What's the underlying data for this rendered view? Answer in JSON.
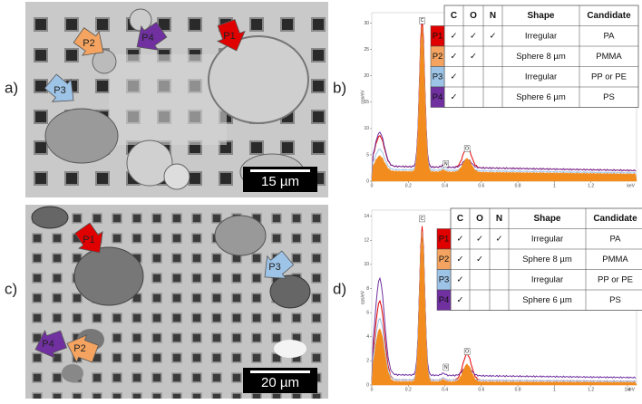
{
  "panel_a": {
    "label": "a)",
    "scale_bar": "15 µm",
    "markers": [
      "P1",
      "P2",
      "P3",
      "P4"
    ]
  },
  "panel_c": {
    "label": "c)",
    "scale_bar": "20 µm",
    "markers": [
      "P1",
      "P2",
      "P3",
      "P4"
    ]
  },
  "panel_b": {
    "label": "b)",
    "y_axis": "cps/eV",
    "x_axis": "keV",
    "xticks": [
      0,
      0.2,
      0.4,
      0.6,
      0.8,
      1,
      1.2
    ],
    "xlim": [
      0,
      1.45
    ],
    "yticks": [
      0,
      5,
      10,
      15,
      20,
      25,
      30
    ],
    "ylim": [
      0,
      32
    ],
    "peaks": [
      "C",
      "N",
      "O"
    ],
    "table": {
      "header": [
        "C",
        "O",
        "N",
        "Shape",
        "Candidate"
      ],
      "rows": [
        [
          "P1",
          "✓",
          "✓",
          "✓",
          "Irregular",
          "PA"
        ],
        [
          "P2",
          "✓",
          "✓",
          null,
          "Sphere 8 µm",
          "PMMA"
        ],
        [
          "P3",
          "✓",
          null,
          null,
          "Irregular",
          "PP or PE"
        ],
        [
          "P4",
          "✓",
          null,
          null,
          "Sphere 6 µm",
          "PS"
        ]
      ]
    }
  },
  "panel_d": {
    "label": "d)",
    "y_axis": "cps/eV",
    "x_axis": "keV",
    "xticks": [
      0,
      0.2,
      0.4,
      0.6,
      0.8,
      1,
      1.2,
      1.4
    ],
    "xlim": [
      0,
      1.45
    ],
    "yticks": [
      0,
      2,
      4,
      6,
      8,
      10,
      12,
      14
    ],
    "ylim": [
      0,
      14.5
    ],
    "peaks": [
      "C",
      "N",
      "O"
    ],
    "table": {
      "header": [
        "C",
        "O",
        "N",
        "Shape",
        "Candidate"
      ],
      "rows": [
        [
          "P1",
          "✓",
          "✓",
          "✓",
          "Irregular",
          "PA"
        ],
        [
          "P2",
          "✓",
          "✓",
          null,
          "Sphere 8 µm",
          "PMMA"
        ],
        [
          "P3",
          "✓",
          null,
          null,
          "Irregular",
          "PP or PE"
        ],
        [
          "P4",
          "✓",
          null,
          null,
          "Sphere 6 µm",
          "PS"
        ]
      ]
    }
  }
}
